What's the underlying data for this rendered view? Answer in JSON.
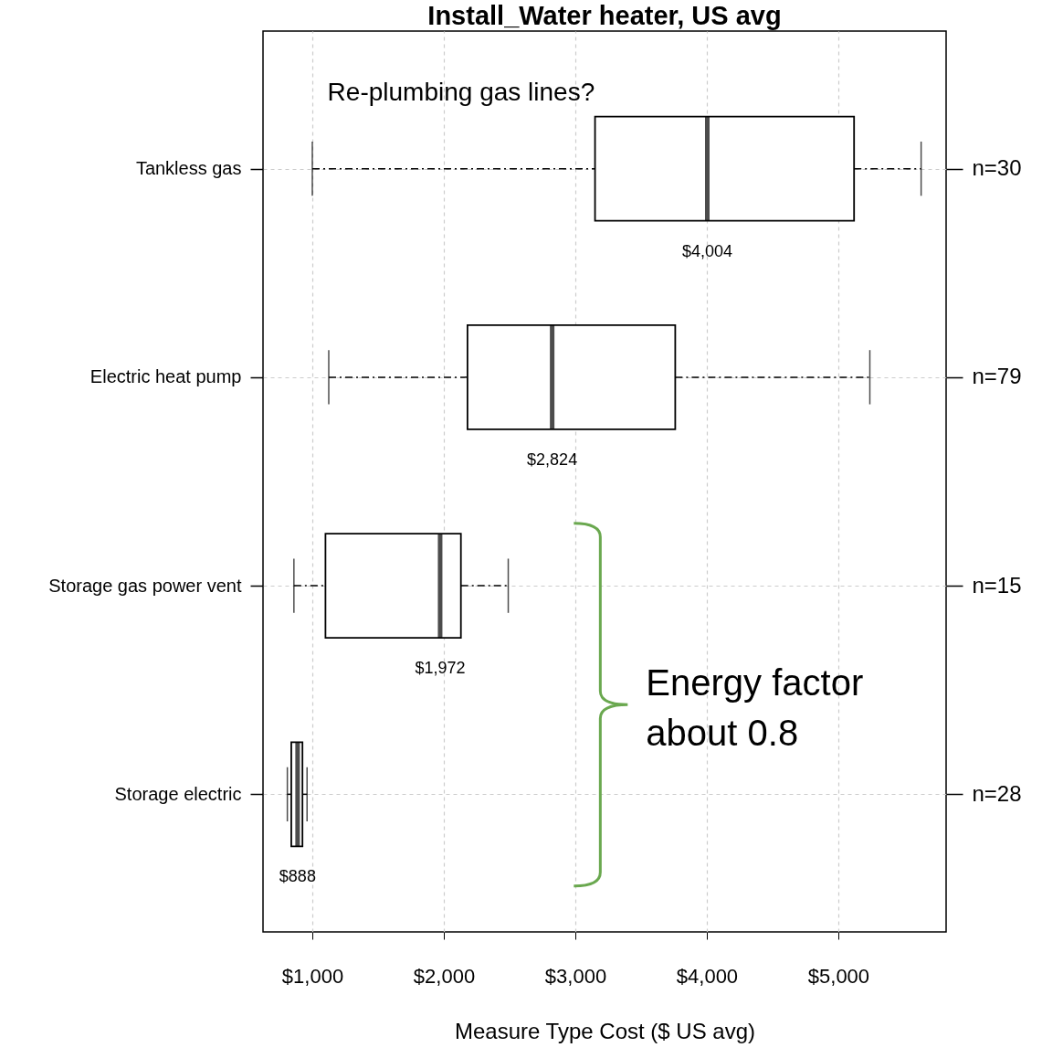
{
  "chart_data": {
    "type": "box",
    "title": "Install_Water heater,  US avg",
    "xlabel": "Measure Type Cost ($  US avg)",
    "orientation": "horizontal",
    "categories": [
      "Tankless gas",
      "Electric heat pump",
      "Storage gas power vent",
      "Storage electric"
    ],
    "boxes": [
      {
        "low": 1000,
        "q1": 3150,
        "median": 4004,
        "q3": 5120,
        "high": 5630
      },
      {
        "low": 1125,
        "q1": 2180,
        "median": 2824,
        "q3": 3760,
        "high": 5240
      },
      {
        "low": 860,
        "q1": 1100,
        "median": 1972,
        "q3": 2130,
        "high": 2490
      },
      {
        "low": 810,
        "q1": 840,
        "median": 888,
        "q3": 925,
        "high": 960
      }
    ],
    "xlim": [
      625,
      5820
    ],
    "xticks": [
      {
        "value": 1000,
        "label": "$1,000"
      },
      {
        "value": 2000,
        "label": "$2,000"
      },
      {
        "value": 3000,
        "label": "$3,000"
      },
      {
        "value": 4000,
        "label": "$4,000"
      },
      {
        "value": 5000,
        "label": "$5,000"
      }
    ],
    "grid": true,
    "annotations": [
      "$4,004",
      "$2,824",
      "$1,972",
      "$888",
      "Re-plumbing gas lines?",
      "n=30",
      "n=79",
      "n=15",
      "n=28",
      "Energy factor about 0.8"
    ]
  }
}
